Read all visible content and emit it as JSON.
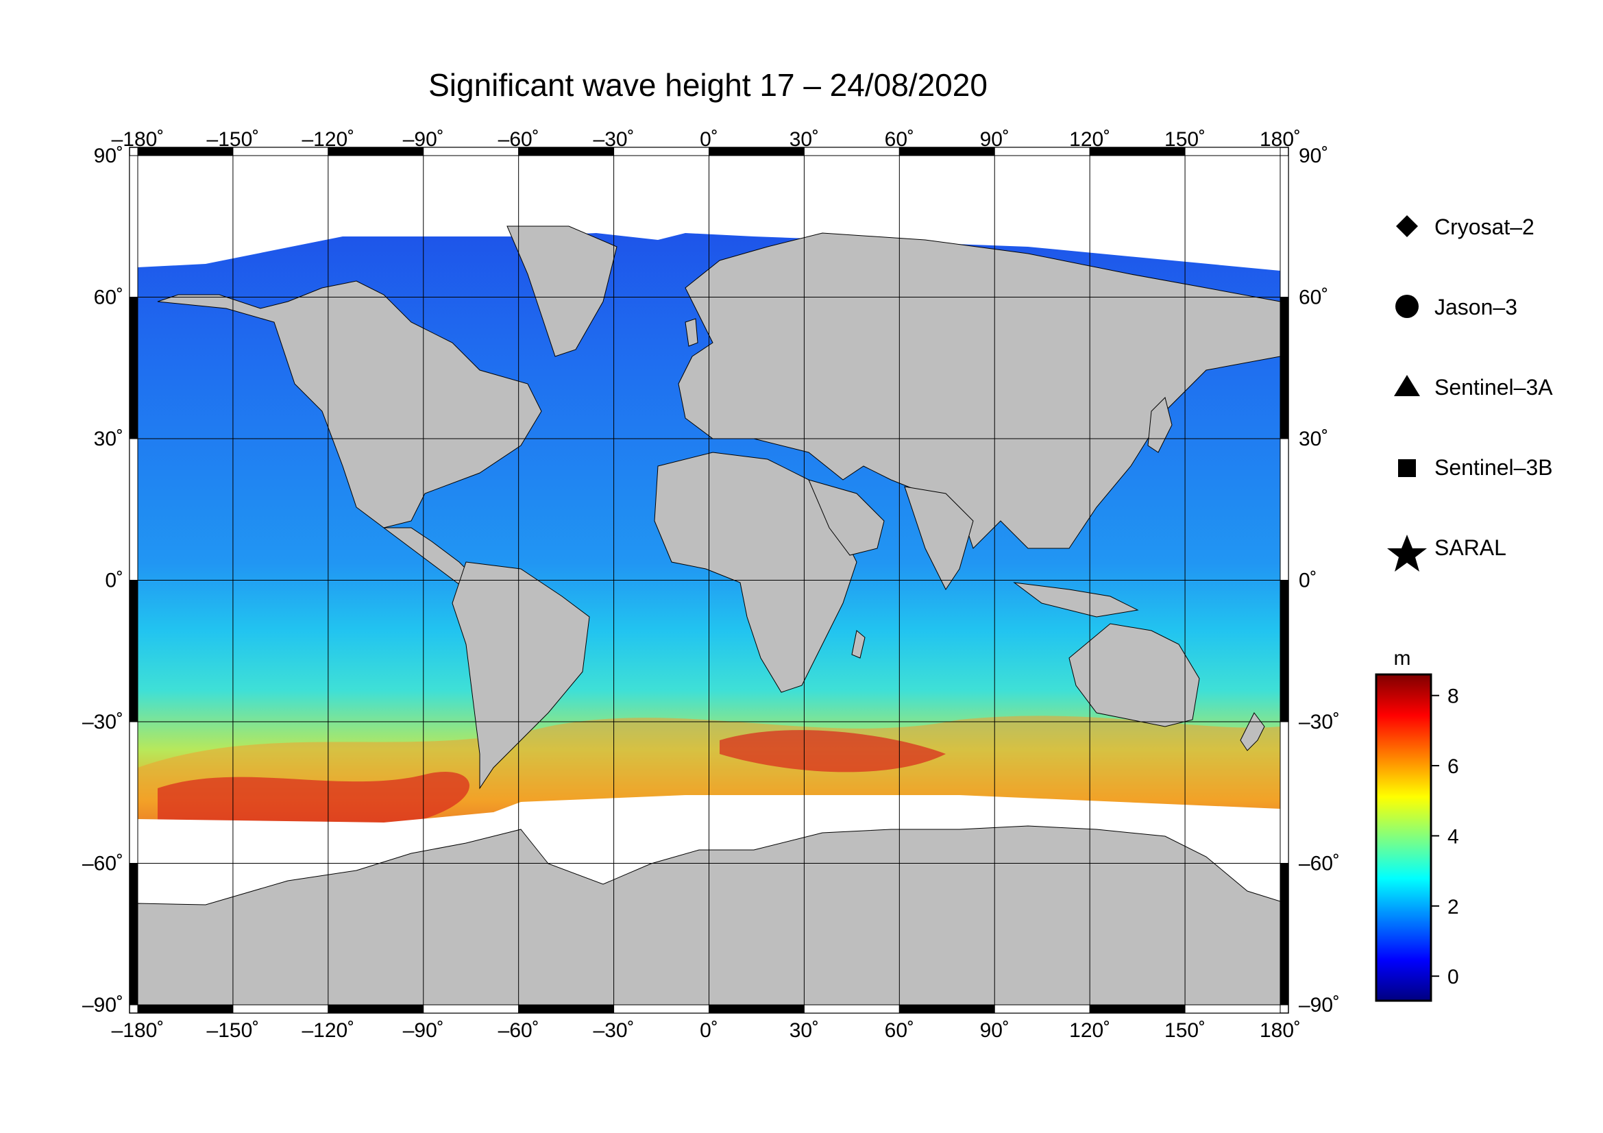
{
  "title": "Significant wave height 17 – 24/08/2020",
  "map": {
    "lon_range": [
      -180,
      180
    ],
    "lat_range": [
      -90,
      90
    ],
    "lon_ticks": [
      -180,
      -150,
      -120,
      -90,
      -60,
      -30,
      0,
      30,
      60,
      90,
      120,
      150,
      180
    ],
    "lat_ticks": [
      -90,
      -60,
      -30,
      0,
      30,
      60,
      90
    ],
    "lon_labels": [
      "–180˚",
      "–150˚",
      "–120˚",
      "–90˚",
      "–60˚",
      "–30˚",
      "0˚",
      "30˚",
      "60˚",
      "90˚",
      "120˚",
      "150˚",
      "180˚"
    ],
    "lat_labels": [
      "–90˚",
      "–60˚",
      "–30˚",
      "0˚",
      "30˚",
      "60˚",
      "90˚"
    ],
    "grid": true,
    "land_color": "#bebebe",
    "ice_color": "#ffffff"
  },
  "legend": {
    "items": [
      {
        "label": "Cryosat–2",
        "symbol": "diamond"
      },
      {
        "label": "Jason–3",
        "symbol": "circle"
      },
      {
        "label": "Sentinel–3A",
        "symbol": "triangle"
      },
      {
        "label": "Sentinel–3B",
        "symbol": "square"
      },
      {
        "label": "SARAL",
        "symbol": "star"
      }
    ]
  },
  "colorbar": {
    "unit": "m",
    "min": -0.7,
    "max": 8.6,
    "ticks": [
      0,
      2,
      4,
      6,
      8
    ],
    "tick_labels": [
      "0",
      "2",
      "4",
      "6",
      "8"
    ],
    "colors": [
      "#00007f",
      "#0000ff",
      "#0080ff",
      "#00ffff",
      "#80ff80",
      "#ffff00",
      "#ff8000",
      "#ff0000",
      "#7f0000"
    ]
  }
}
